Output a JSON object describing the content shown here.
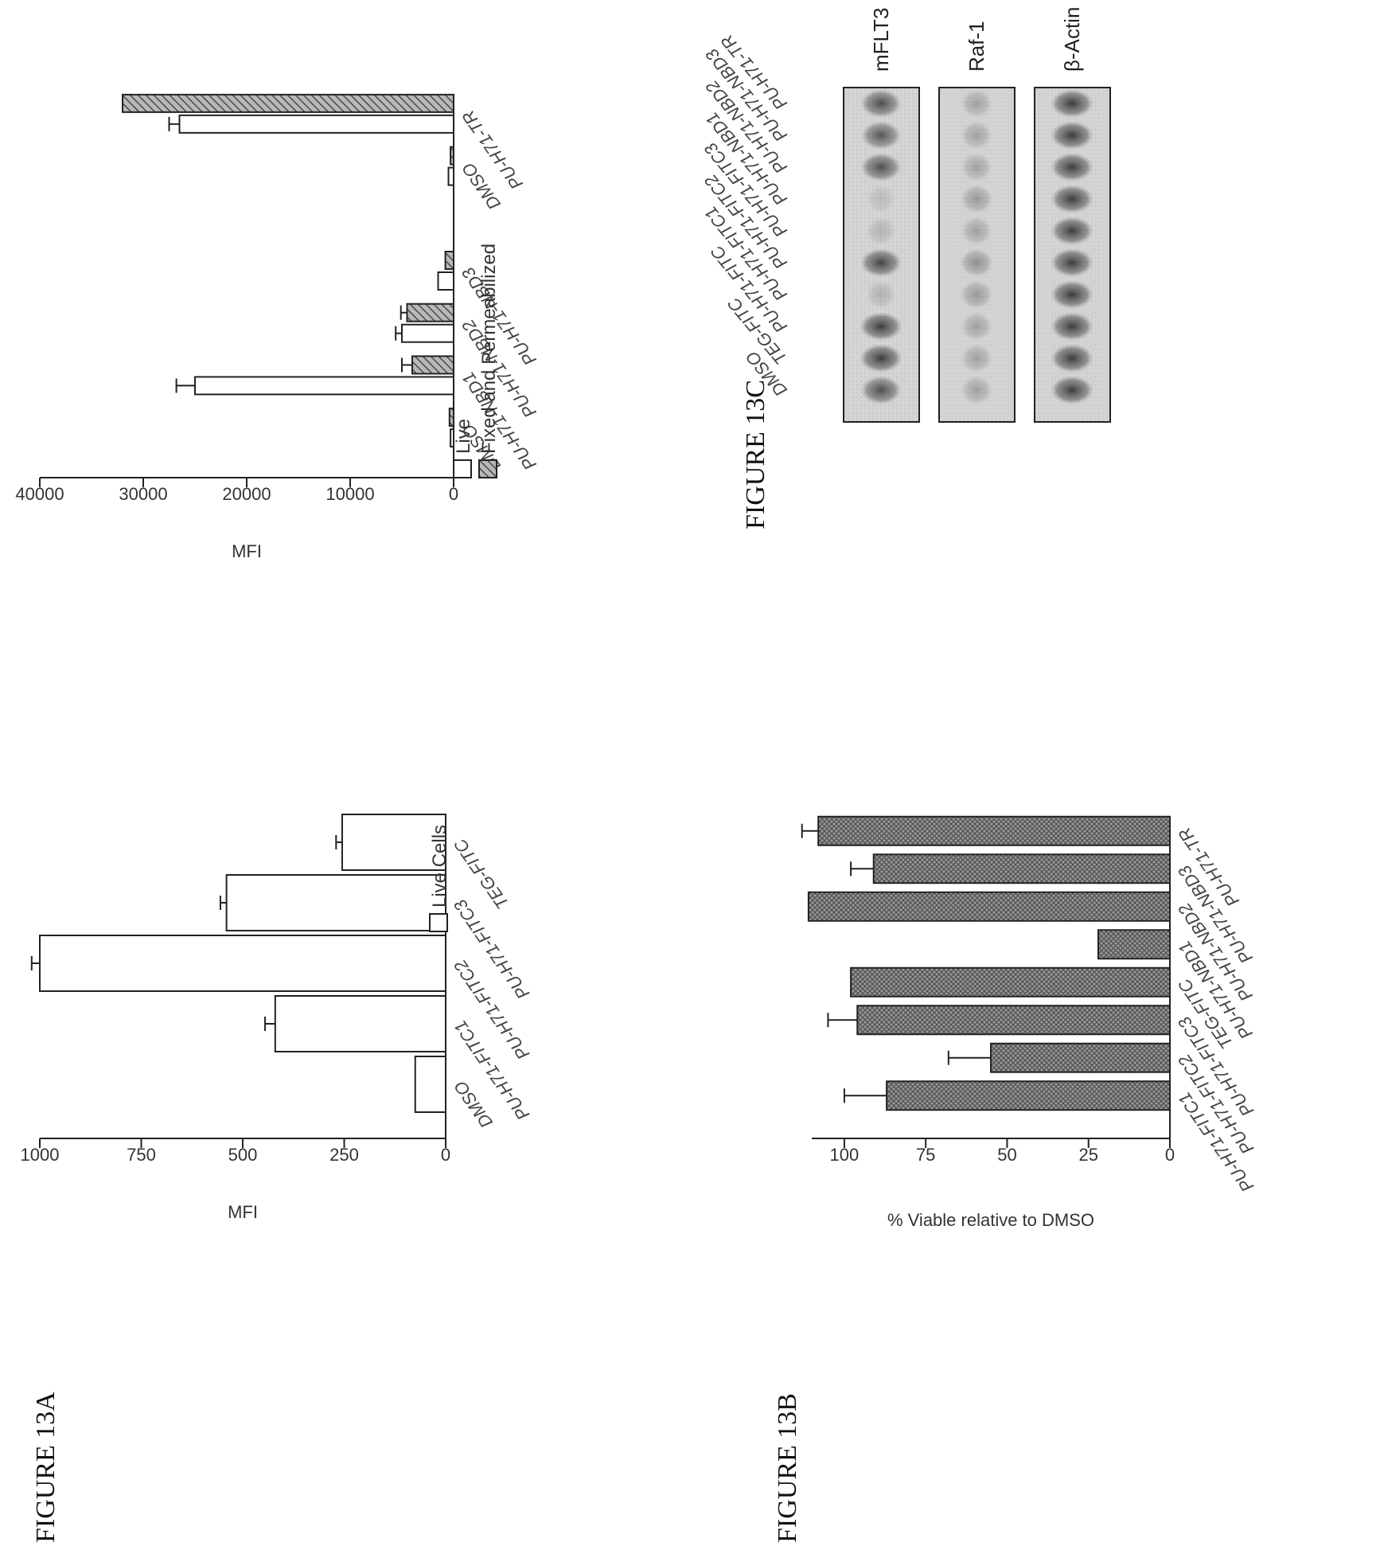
{
  "figure_labels": {
    "a": "FIGURE 13A",
    "b": "FIGURE 13B",
    "c": "FIGURE 13C"
  },
  "chart_data": [
    {
      "id": "13A-left",
      "type": "bar",
      "orientation": "rotated-90-ccw",
      "ylabel": "MFI",
      "ylim": [
        0,
        1000
      ],
      "yticks": [
        "0",
        "250",
        "500",
        "750",
        "1000"
      ],
      "categories": [
        "DMSO",
        "PU-H71-FITC1",
        "PU-H71-FITC2",
        "PU-H71-FITC3",
        "TEG-FITC"
      ],
      "series": [
        {
          "name": "Live Cells",
          "values": [
            75,
            420,
            1000,
            540,
            255
          ],
          "errors": [
            0,
            25,
            20,
            15,
            15
          ]
        }
      ],
      "legend": "top-right"
    },
    {
      "id": "13A-right",
      "type": "bar",
      "orientation": "rotated-90-ccw",
      "ylabel": "MFI",
      "ylim": [
        0,
        40000
      ],
      "yticks": [
        "0",
        "10000",
        "20000",
        "30000",
        "40000"
      ],
      "categories": [
        "DMSO",
        "PU-H71-NBD1",
        "PU-H71-NBD2",
        "PU-H71-NBD3",
        "",
        "DMSO",
        "PU-H71-TR"
      ],
      "series": [
        {
          "name": "Live",
          "values": [
            300,
            25000,
            5000,
            1500,
            null,
            500,
            26500
          ],
          "errors": [
            0,
            1800,
            600,
            0,
            null,
            0,
            1000
          ]
        },
        {
          "name": "Fixed and Permeabilized",
          "values": [
            400,
            4000,
            4500,
            800,
            null,
            300,
            32000
          ],
          "errors": [
            0,
            1000,
            600,
            0,
            null,
            0,
            0
          ]
        }
      ],
      "legend": "top-left"
    },
    {
      "id": "13B",
      "type": "bar",
      "orientation": "rotated-90-ccw",
      "ylabel": "% Viable relative to DMSO",
      "ylim": [
        0,
        110
      ],
      "yticks": [
        "0",
        "25",
        "50",
        "75",
        "100"
      ],
      "categories": [
        "PU-H71-FITC1",
        "PU-H71-FITC2",
        "PU-H71-FITC3",
        "TEG-FITC",
        "PU-H71-NBD1",
        "PU-H71-NBD2",
        "PU-H71-NBD3",
        "PU-H71-TR"
      ],
      "series": [
        {
          "values": [
            87,
            55,
            96,
            98,
            22,
            111,
            91,
            108
          ],
          "errors": [
            13,
            13,
            9,
            0,
            0,
            0,
            7,
            5
          ]
        }
      ]
    }
  ],
  "blot": {
    "lanes": [
      "DMSO",
      "TEG-FITC",
      "PU-H71-FITC",
      "PU-H71-FITC1",
      "PU-H71-FITC2",
      "PU-H71-FITC3",
      "PU-H71-NBD1",
      "PU-H71-NBD2",
      "PU-H71-NBD3",
      "PU-H71-TR"
    ],
    "rows": [
      {
        "label": "mFLT3",
        "intensities": [
          0.8,
          0.9,
          0.9,
          0.2,
          0.85,
          0.2,
          0.15,
          0.8,
          0.75,
          0.8
        ]
      },
      {
        "label": "Raf-1",
        "intensities": [
          0.3,
          0.3,
          0.3,
          0.35,
          0.4,
          0.3,
          0.35,
          0.3,
          0.3,
          0.3
        ]
      },
      {
        "label": "β-Actin",
        "intensities": [
          0.9,
          0.9,
          0.9,
          0.9,
          0.9,
          0.9,
          0.9,
          0.9,
          0.9,
          0.9
        ]
      }
    ]
  },
  "colors": {
    "hatched-bar": "#8a8a8a",
    "open-bar": "#ffffff",
    "blot-bg": "#d3d3d3",
    "band": "#3a3a3a"
  }
}
